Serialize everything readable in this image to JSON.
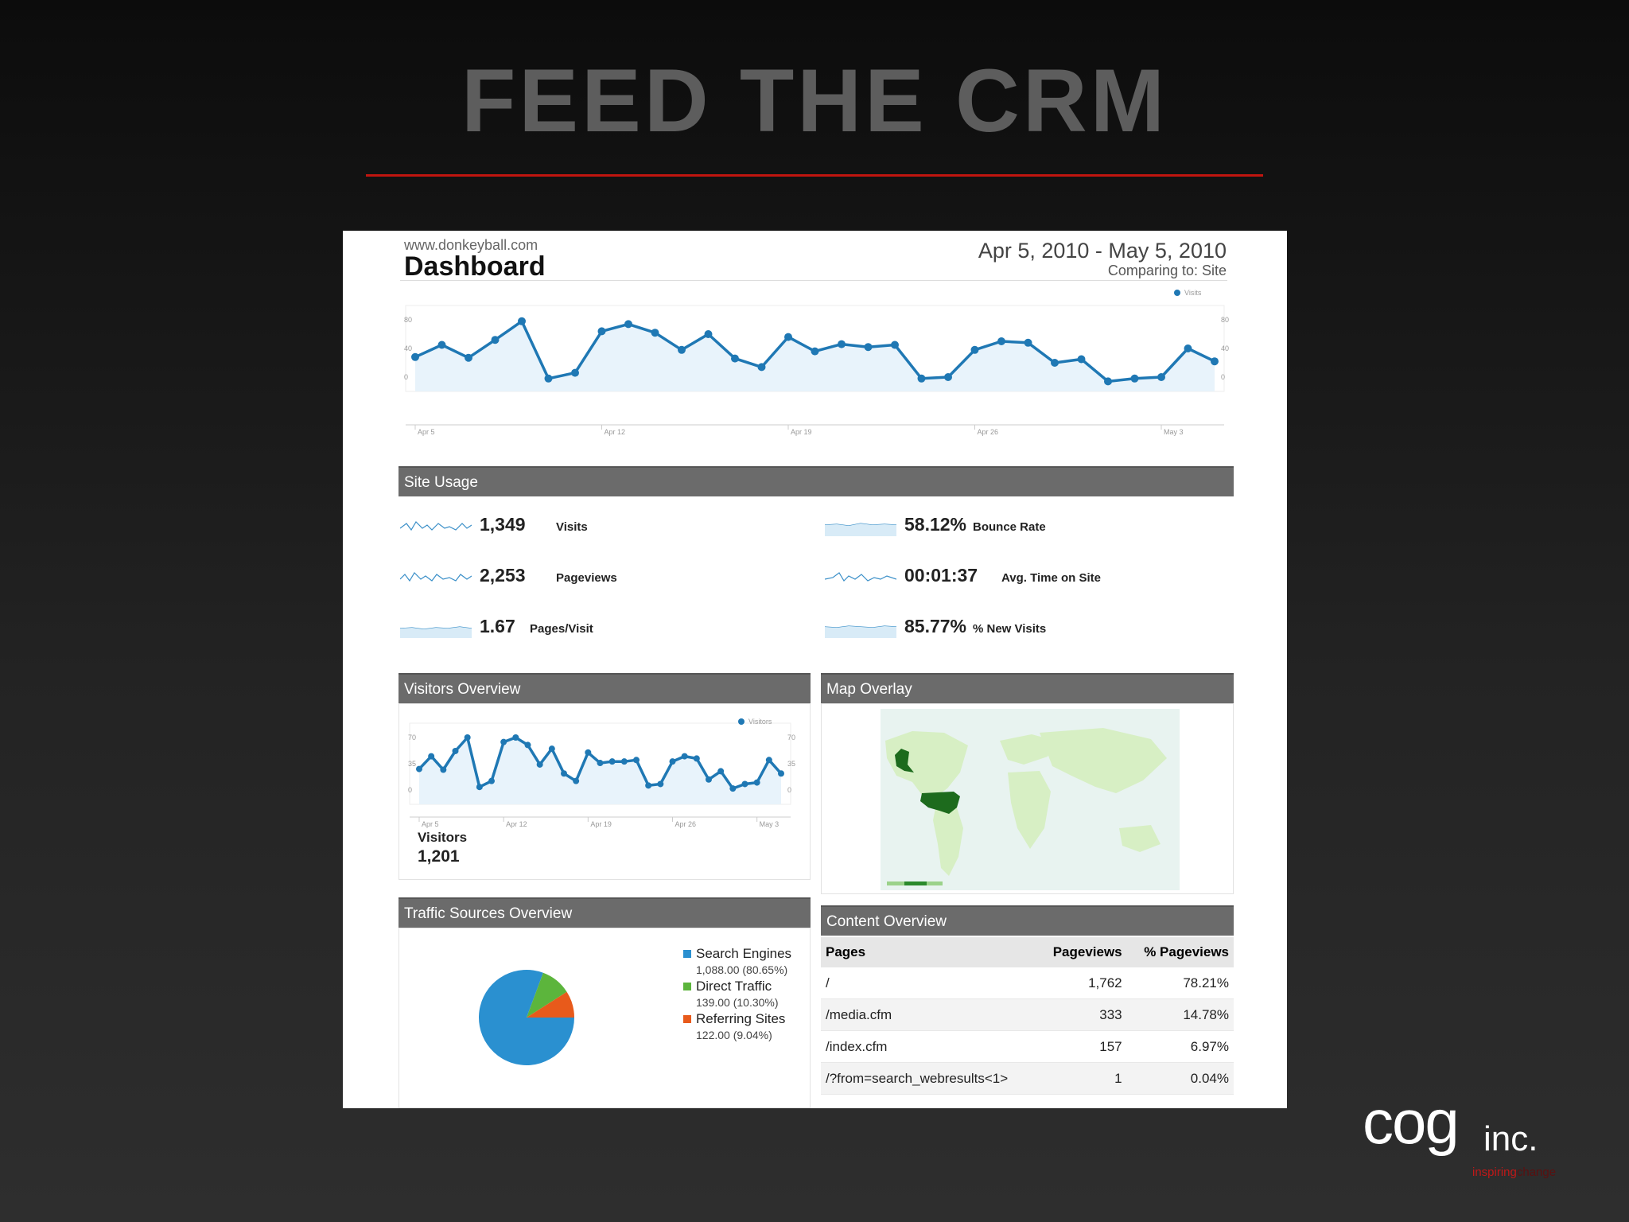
{
  "slide": {
    "title": "FEED THE CRM"
  },
  "dashboard": {
    "site": "www.donkeyball.com",
    "title": "Dashboard",
    "date_range": "Apr 5, 2010 - May 5, 2010",
    "comparing": "Comparing to: Site",
    "visits_legend": "Visits",
    "visits_axis_left": [
      "80",
      "40",
      "0"
    ],
    "visits_axis_right": [
      "80",
      "40",
      "0"
    ],
    "date_ticks": [
      "Apr 5",
      "Apr 12",
      "Apr 19",
      "Apr 26",
      "May 3"
    ],
    "visits_series": [
      28,
      45,
      27,
      52,
      78,
      -2,
      6,
      64,
      74,
      62,
      38,
      60,
      26,
      14,
      56,
      36,
      46,
      42,
      45,
      -2,
      0,
      38,
      50,
      48,
      20,
      25,
      -6,
      -2,
      0,
      40,
      22
    ]
  },
  "site_usage": {
    "title": "Site Usage",
    "metrics": [
      {
        "value": "1,349",
        "label": "Visits"
      },
      {
        "value": "2,253",
        "label": "Pageviews"
      },
      {
        "value": "1.67",
        "label": "Pages/Visit"
      },
      {
        "value": "58.12%",
        "label": "Bounce Rate"
      },
      {
        "value": "00:01:37",
        "label": "Avg. Time on Site"
      },
      {
        "value": "85.77%",
        "label": "% New Visits"
      }
    ]
  },
  "visitors_overview": {
    "title": "Visitors Overview",
    "legend": "Visitors",
    "axis_left": [
      "70",
      "35",
      "0"
    ],
    "axis_right": [
      "70",
      "35",
      "0"
    ],
    "date_ticks": [
      "Apr 5",
      "Apr 12",
      "Apr 19",
      "Apr 26",
      "May 3"
    ],
    "series": [
      28,
      45,
      27,
      52,
      70,
      4,
      12,
      64,
      70,
      60,
      34,
      55,
      22,
      12,
      50,
      36,
      38,
      38,
      40,
      6,
      8,
      38,
      45,
      42,
      14,
      25,
      2,
      8,
      10,
      40,
      22
    ],
    "label": "Visitors",
    "value": "1,201"
  },
  "map_overlay": {
    "title": "Map Overlay"
  },
  "traffic_sources": {
    "title": "Traffic Sources Overview",
    "items": [
      {
        "name": "Search Engines",
        "detail": "1,088.00 (80.65%)",
        "pct": 80.65,
        "color": "#2a90d0"
      },
      {
        "name": "Direct Traffic",
        "detail": "139.00 (10.30%)",
        "pct": 10.3,
        "color": "#5cb53c"
      },
      {
        "name": "Referring Sites",
        "detail": "122.00 (9.04%)",
        "pct": 9.04,
        "color": "#e85a1b"
      }
    ]
  },
  "content_overview": {
    "title": "Content Overview",
    "headers": [
      "Pages",
      "Pageviews",
      "% Pageviews"
    ],
    "rows": [
      [
        "/",
        "1,762",
        "78.21%"
      ],
      [
        "/media.cfm",
        "333",
        "14.78%"
      ],
      [
        "/index.cfm",
        "157",
        "6.97%"
      ],
      [
        "/?from=search_webresults<1>",
        "1",
        "0.04%"
      ]
    ]
  },
  "logo": {
    "word": "cog",
    "suffix": "inc.",
    "tag_a": "inspiring",
    "tag_b": "change"
  }
}
